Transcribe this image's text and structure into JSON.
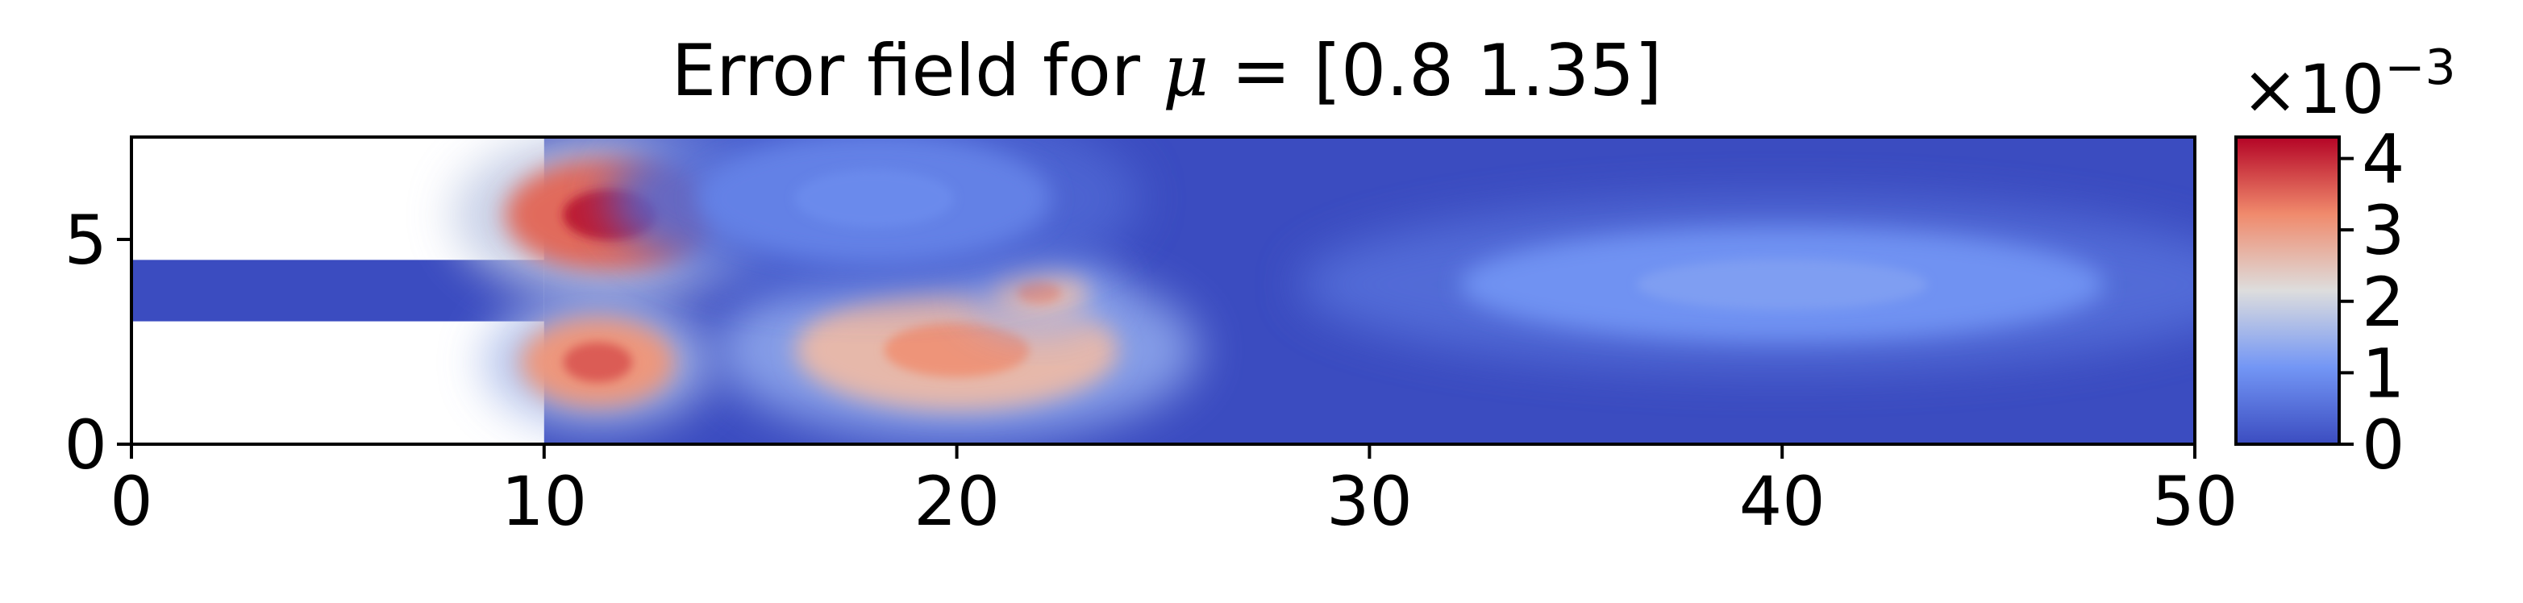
{
  "chart_data": {
    "type": "heatmap",
    "title_prefix": "Error field for ",
    "title_symbol": "μ",
    "title_suffix": " = [0.8  1.35]",
    "xlabel": "",
    "ylabel": "",
    "xlim": [
      0,
      50
    ],
    "ylim": [
      0,
      7.5
    ],
    "x_ticks": [
      0,
      10,
      20,
      30,
      40,
      50
    ],
    "x_tick_labels": [
      "0",
      "10",
      "20",
      "30",
      "40",
      "50"
    ],
    "y_ticks": [
      0,
      5
    ],
    "y_tick_labels": [
      "0",
      "5"
    ],
    "domain": {
      "inlet_channel": {
        "x": [
          0,
          10
        ],
        "y": [
          3,
          4.5
        ]
      },
      "chamber": {
        "x": [
          10,
          50
        ],
        "y": [
          0,
          7.5
        ]
      }
    },
    "colormap": "coolwarm",
    "colorbar": {
      "range": [
        0,
        0.0043
      ],
      "ticks": [
        0,
        1,
        2,
        3,
        4
      ],
      "tick_labels": [
        "0",
        "1",
        "2",
        "3",
        "4"
      ],
      "offset_base": "×10",
      "offset_exponent": "−3"
    },
    "error_hotspots": [
      {
        "x": 11.6,
        "y": 5.6,
        "value": 0.0041
      },
      {
        "x": 11.3,
        "y": 2.0,
        "value": 0.0036
      },
      {
        "x": 20.0,
        "y": 2.3,
        "value": 0.0031
      },
      {
        "x": 22.0,
        "y": 3.7,
        "value": 0.003
      },
      {
        "x": 18.0,
        "y": 6.0,
        "value": 0.0009
      },
      {
        "x": 40.0,
        "y": 3.9,
        "value": 0.0012
      }
    ],
    "colors": {
      "low": "#3b4cc0",
      "mid": "#dddddd",
      "high": "#b40426"
    }
  }
}
